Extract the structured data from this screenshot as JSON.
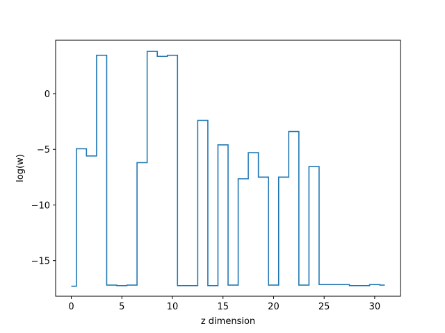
{
  "chart_data": {
    "type": "line",
    "step": "mid",
    "title": "",
    "xlabel": "z dimension",
    "ylabel": "log(w)",
    "xlim": [
      -1.55,
      32.55
    ],
    "ylim": [
      -18.2,
      4.8
    ],
    "xticks": [
      0,
      5,
      10,
      15,
      20,
      25,
      30
    ],
    "yticks": [
      -15,
      -10,
      -5,
      0
    ],
    "ytick_labels": [
      "−15",
      "−10",
      "−5",
      "0"
    ],
    "grid": false,
    "series": [
      {
        "color": "#1f77b4",
        "x": [
          0,
          1,
          2,
          3,
          4,
          5,
          6,
          7,
          8,
          9,
          10,
          11,
          12,
          13,
          14,
          15,
          16,
          17,
          18,
          19,
          20,
          21,
          22,
          23,
          24,
          25,
          26,
          27,
          28,
          29,
          30,
          31
        ],
        "values": [
          -17.3,
          -4.95,
          -5.6,
          3.45,
          -17.2,
          -17.25,
          -17.2,
          -6.2,
          3.8,
          3.35,
          3.45,
          -17.25,
          -17.25,
          -2.4,
          -17.25,
          -4.6,
          -17.2,
          -7.65,
          -5.3,
          -7.5,
          -17.2,
          -7.5,
          -3.4,
          -17.2,
          -6.55,
          -17.15,
          -17.15,
          -17.15,
          -17.25,
          -17.25,
          -17.15,
          -17.2
        ]
      }
    ]
  }
}
